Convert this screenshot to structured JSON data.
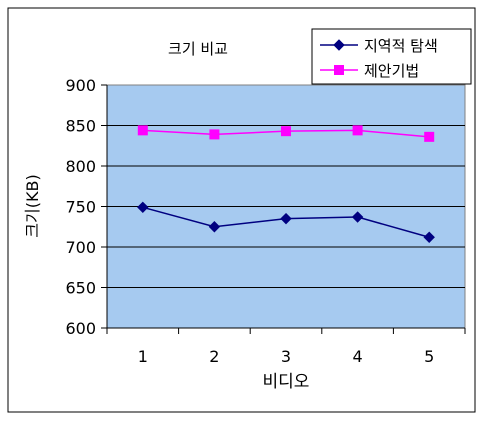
{
  "chart_data": {
    "type": "line",
    "title": "크기 비교",
    "xlabel": "비디오",
    "ylabel": "크기(KB)",
    "categories": [
      "1",
      "2",
      "3",
      "4",
      "5"
    ],
    "ylim": [
      600,
      900
    ],
    "yticks": [
      600,
      650,
      700,
      750,
      800,
      850,
      900
    ],
    "grid": true,
    "legend_position": "top-right",
    "plot_background": "#A6CAF0",
    "series": [
      {
        "name": "지역적 탐색",
        "color": "#000080",
        "marker": "diamond",
        "values": [
          749,
          725,
          735,
          737,
          712
        ]
      },
      {
        "name": "제안기법",
        "color": "#FF00FF",
        "marker": "square",
        "values": [
          844,
          839,
          843,
          844,
          836
        ]
      }
    ]
  }
}
